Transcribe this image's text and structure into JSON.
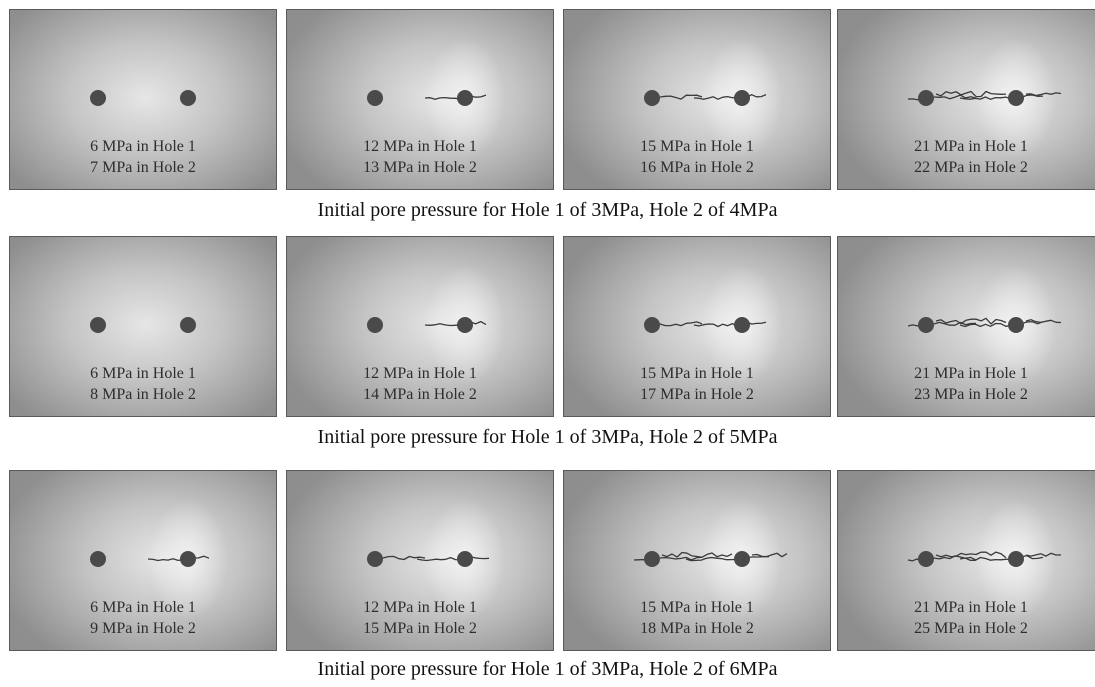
{
  "rows": [
    {
      "caption": "Initial pore pressure for Hole 1 of 3MPa, Hole 2 of 4MPa",
      "panels": [
        {
          "hole1": "6 MPa in Hole 1",
          "hole2": "7 MPa in Hole 2",
          "crack_stage": 0
        },
        {
          "hole1": "12 MPa in Hole 1",
          "hole2": "13 MPa in Hole 2",
          "crack_stage": 1
        },
        {
          "hole1": "15 MPa in Hole 1",
          "hole2": "16 MPa in Hole 2",
          "crack_stage": 2
        },
        {
          "hole1": "21 MPa in Hole 1",
          "hole2": "22 MPa in Hole 2",
          "crack_stage": 3
        }
      ]
    },
    {
      "caption": "Initial pore pressure for Hole 1 of 3MPa, Hole 2 of 5MPa",
      "panels": [
        {
          "hole1": "6 MPa in Hole 1",
          "hole2": "8 MPa in Hole 2",
          "crack_stage": 0
        },
        {
          "hole1": "12 MPa in Hole 1",
          "hole2": "14 MPa in Hole 2",
          "crack_stage": 1
        },
        {
          "hole1": "15 MPa in Hole 1",
          "hole2": "17 MPa in Hole 2",
          "crack_stage": 2
        },
        {
          "hole1": "21 MPa in Hole 1",
          "hole2": "23 MPa in Hole 2",
          "crack_stage": 3
        }
      ]
    },
    {
      "caption": "Initial pore pressure for Hole 1 of 3MPa, Hole 2 of 6MPa",
      "panels": [
        {
          "hole1": "6 MPa in Hole 1",
          "hole2": "9 MPa in Hole 2",
          "crack_stage": 1
        },
        {
          "hole1": "12 MPa in Hole 1",
          "hole2": "15 MPa in Hole 2",
          "crack_stage": 2
        },
        {
          "hole1": "15 MPa in Hole 1",
          "hole2": "18 MPa in Hole 2",
          "crack_stage": 3
        },
        {
          "hole1": "21 MPa in Hole 1",
          "hole2": "25 MPa in Hole 2",
          "crack_stage": 3
        }
      ]
    }
  ],
  "colors": {
    "field_center": "#e6e6e6",
    "field_edge": "#8e8e8e",
    "hole": "#4a4a4a",
    "crack": "#3a3a3a"
  }
}
